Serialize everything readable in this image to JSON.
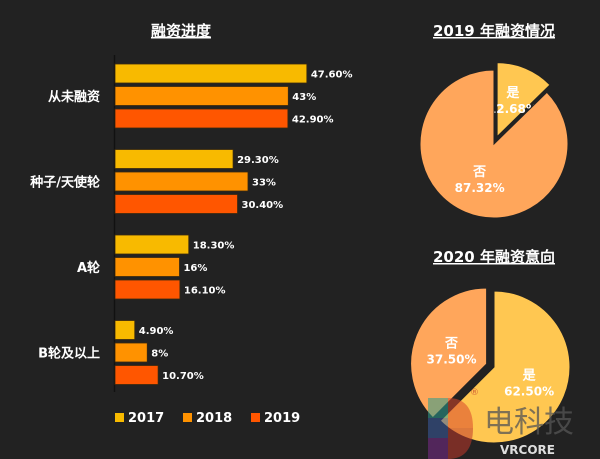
{
  "chart_data": [
    {
      "type": "bar",
      "orientation": "horizontal",
      "title": "融资进度",
      "categories": [
        "从未融资",
        "种子/天使轮",
        "A轮",
        "B轮及以上"
      ],
      "series": [
        {
          "name": "2017",
          "values": [
            47.6,
            29.3,
            18.3,
            4.9
          ],
          "labels": [
            "47.60%",
            "29.30%",
            "18.30%",
            "4.90%"
          ],
          "color": "#F8BA00"
        },
        {
          "name": "2018",
          "values": [
            43,
            33,
            16,
            8
          ],
          "labels": [
            "43%",
            "33%",
            "16%",
            "8%"
          ],
          "color": "#FF9200"
        },
        {
          "name": "2019",
          "values": [
            42.9,
            30.4,
            16.1,
            10.7
          ],
          "labels": [
            "42.90%",
            "30.40%",
            "16.10%",
            "10.70%"
          ],
          "color": "#FF5600"
        }
      ],
      "unit": "%",
      "legend": "bottom"
    },
    {
      "type": "pie",
      "title": "2019 年融资情况",
      "slices": [
        {
          "label": "是",
          "value": 12.68,
          "text": "12.68%",
          "color": "#FFC751",
          "exploded": true
        },
        {
          "label": "否",
          "value": 87.32,
          "text": "87.32%",
          "color": "#FFA65B",
          "exploded": false
        }
      ]
    },
    {
      "type": "pie",
      "title": "2020 年融资意向",
      "slices": [
        {
          "label": "是",
          "value": 62.5,
          "text": "62.50%",
          "color": "#FFC751",
          "exploded": false
        },
        {
          "label": "否",
          "value": 37.5,
          "text": "37.50%",
          "color": "#FFA65B",
          "exploded": true
        }
      ]
    }
  ],
  "watermark": {
    "brand": "电科技",
    "sub": "VRCORE",
    "mark": "®"
  }
}
